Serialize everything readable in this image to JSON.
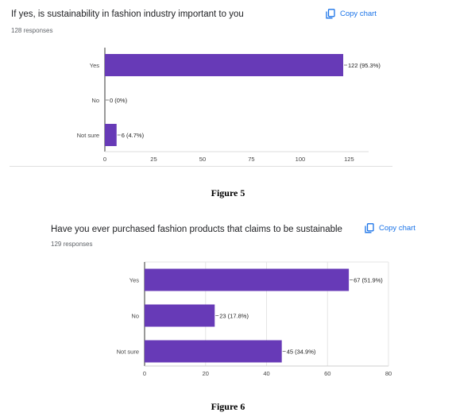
{
  "figure5": {
    "title": "If yes, is sustainability in fashion industry important to you",
    "responses": "128 responses",
    "copy_label": "Copy chart",
    "copy_icon": "copy-icon",
    "caption": "Figure 5"
  },
  "figure6": {
    "title": "Have you ever purchased fashion products that claims to be sustainable",
    "responses": "129 responses",
    "copy_label": "Copy chart",
    "copy_icon": "copy-icon",
    "caption": "Figure 6"
  },
  "chart_data": [
    {
      "type": "bar",
      "orientation": "horizontal",
      "categories": [
        "Yes",
        "No",
        "Not sure"
      ],
      "values": [
        122,
        0,
        6
      ],
      "data_labels": [
        "122 (95.3%)",
        "0 (0%)",
        "6 (4.7%)"
      ],
      "xlim": [
        0,
        135
      ],
      "xticks": [
        "0",
        "25",
        "50",
        "75",
        "100",
        "125"
      ],
      "tick_values": [
        0,
        25,
        50,
        75,
        100,
        125
      ],
      "bar_color": "#673ab7",
      "grid": false
    },
    {
      "type": "bar",
      "orientation": "horizontal",
      "categories": [
        "Yes",
        "No",
        "Not sure"
      ],
      "values": [
        67,
        23,
        45
      ],
      "data_labels": [
        "67 (51.9%)",
        "23 (17.8%)",
        "45 (34.9%)"
      ],
      "xlim": [
        0,
        80
      ],
      "xticks": [
        "0",
        "20",
        "40",
        "60",
        "80"
      ],
      "tick_values": [
        0,
        20,
        40,
        60,
        80
      ],
      "bar_color": "#673ab7",
      "grid": true
    }
  ]
}
